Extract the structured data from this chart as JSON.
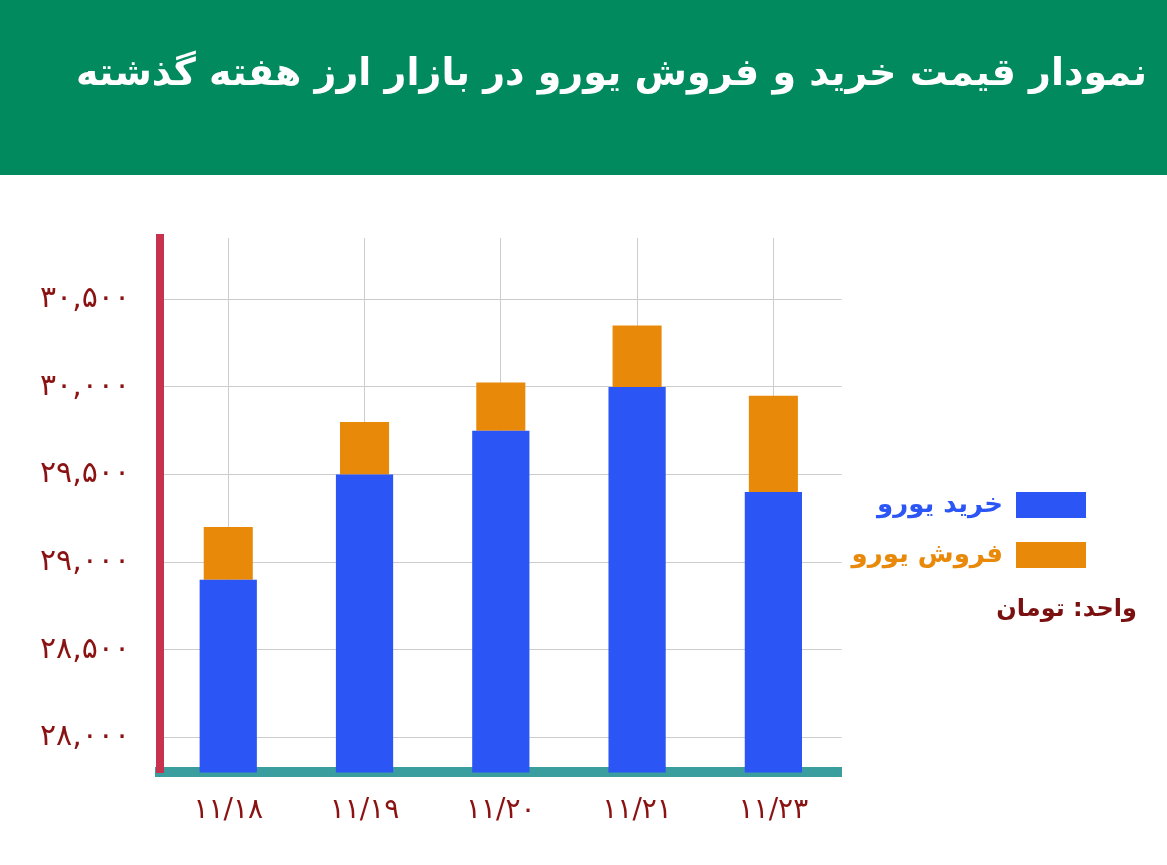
{
  "chart_data": {
    "type": "bar",
    "title": "نمودار قیمت خرید و فروش یورو در بازار ارز هفته گذشته",
    "categories": [
      "۱۱/۱۸",
      "۱۱/۱۹",
      "۱۱/۲۰",
      "۱۱/۲۱",
      "۱۱/۲۳"
    ],
    "series": [
      {
        "name": "خرید یورو",
        "color": "#2b55f5",
        "values": [
          28900,
          29500,
          29750,
          30000,
          29400
        ]
      },
      {
        "name": "فروش یورو",
        "color": "#e8890a",
        "values": [
          300,
          300,
          275,
          350,
          550
        ],
        "base": [
          28900,
          29500,
          29750,
          30000,
          29400
        ]
      }
    ],
    "ylim": [
      27800,
      30850
    ],
    "yticks": [
      {
        "value": 28000,
        "label": "۲۸,۰۰۰"
      },
      {
        "value": 28500,
        "label": "۲۸,۵۰۰"
      },
      {
        "value": 29000,
        "label": "۲۹,۰۰۰"
      },
      {
        "value": 29500,
        "label": "۲۹,۵۰۰"
      },
      {
        "value": 30000,
        "label": "۳۰,۰۰۰"
      },
      {
        "value": 30500,
        "label": "۳۰,۵۰۰"
      }
    ],
    "grid": true,
    "legend": "right",
    "annotations": [
      "واحد: تومان"
    ]
  }
}
